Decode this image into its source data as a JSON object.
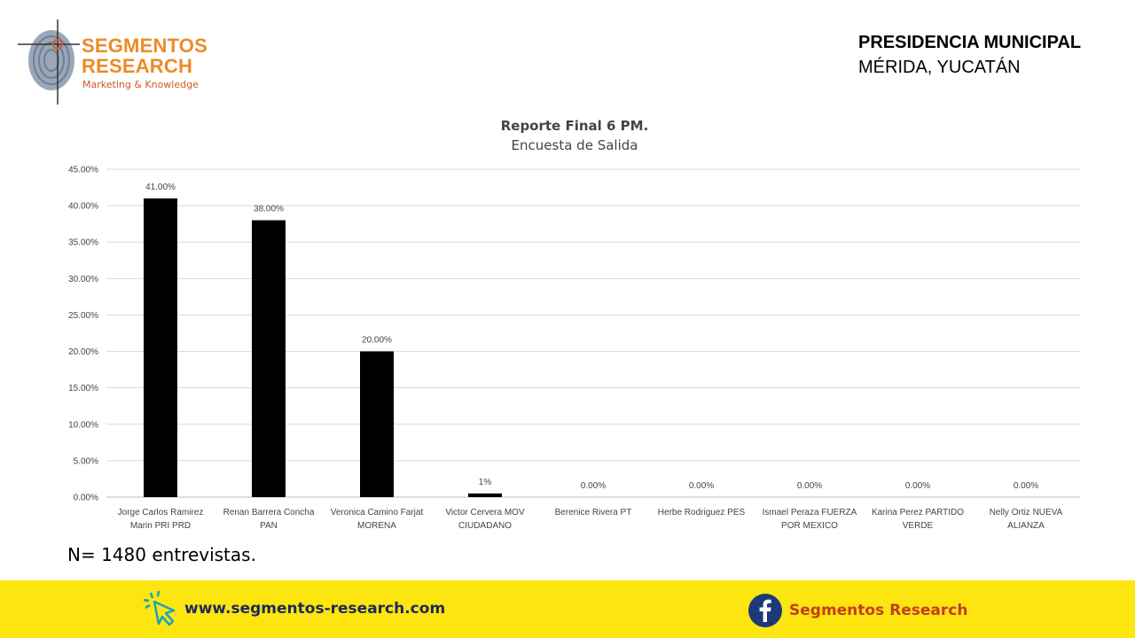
{
  "logo": {
    "line1": "SEGMENTOS",
    "line2": "RESEARCH",
    "tagline": "Marketing & Knowledge"
  },
  "header": {
    "line1": "PRESIDENCIA MUNICIPAL",
    "line2": "MÉRIDA, YUCATÁN"
  },
  "chart_title": {
    "line1": "Reporte  Final 6 PM.",
    "line2": "Encuesta de Salida"
  },
  "chart_data": {
    "type": "bar",
    "title": "Reporte  Final 6 PM.",
    "subtitle": "Encuesta de Salida",
    "categories": [
      [
        "Jorge Carlos Ramirez",
        "Marin PRI PRD"
      ],
      [
        "Renan Barrera Concha",
        "PAN"
      ],
      [
        "Veronica Camino Farjat",
        "MORENA"
      ],
      [
        "Victor Cervera MOV",
        "CIUDADANO"
      ],
      [
        "Berenice Rivera PT"
      ],
      [
        "Herbe Rodriguez PES"
      ],
      [
        "Ismael Peraza FUERZA",
        "POR MEXICO"
      ],
      [
        "Karina Perez PARTIDO",
        "VERDE"
      ],
      [
        "Nelly Ortiz NUEVA",
        "ALIANZA"
      ]
    ],
    "values": [
      41,
      38,
      20,
      0.5,
      0,
      0,
      0,
      0,
      0
    ],
    "data_labels": [
      "41.00%",
      "38.00%",
      "20.00%",
      "1%",
      "0.00%",
      "0.00%",
      "0.00%",
      "0.00%",
      "0.00%"
    ],
    "yticks": [
      0,
      5,
      10,
      15,
      20,
      25,
      30,
      35,
      40,
      45
    ],
    "ytick_labels": [
      "0.00%",
      "5.00%",
      "10.00%",
      "15.00%",
      "20.00%",
      "25.00%",
      "30.00%",
      "35.00%",
      "40.00%",
      "45.00%"
    ],
    "ylim": [
      0,
      45
    ],
    "grid": true,
    "bar_color": "#000000",
    "xlabel": "",
    "ylabel": ""
  },
  "note": "N= 1480 entrevistas.",
  "footer": {
    "website": "www.segmentos-research.com",
    "facebook_name": "Segmentos Research",
    "background": "#fde50f"
  }
}
